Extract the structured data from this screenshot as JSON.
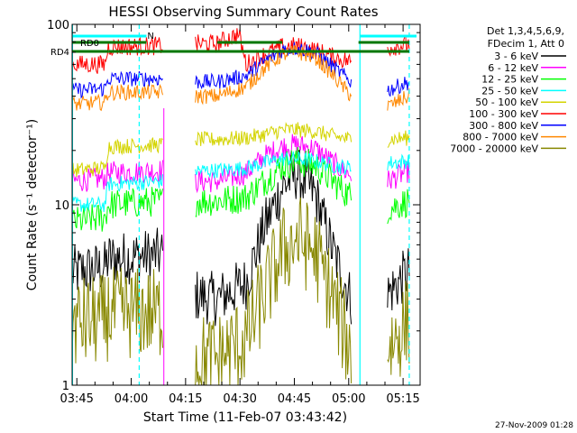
{
  "chart_data": {
    "type": "line",
    "title": "HESSI Observing Summary Count Rates",
    "xlabel": "Start Time (11-Feb-07 03:43:42)",
    "ylabel": "Count Rate (s⁻¹ detector⁻¹)",
    "x_tick_labels": [
      "03:45",
      "04:00",
      "04:15",
      "04:30",
      "04:45",
      "05:00",
      "05:15"
    ],
    "x_tick_minutes": [
      1.3,
      16.3,
      31.3,
      46.3,
      61.3,
      76.3,
      91.3
    ],
    "xlim_minutes": [
      0,
      96
    ],
    "y_scale": "log",
    "ylim": [
      1,
      100
    ],
    "y_tick_labels": [
      "1",
      "10",
      "100"
    ],
    "y_tick_values": [
      1,
      10,
      100
    ],
    "legend": {
      "placement": "top-right",
      "header_lines": [
        "Det 1,3,4,5,6,9,",
        "FDecim 1, Att 0"
      ]
    },
    "annotations": {
      "rd0": "RD0",
      "rd4": "RD4",
      "n_flag": "N",
      "rd0_color": "#007700",
      "rd4_color": "#007700",
      "n_color": "#00ffff",
      "vline_color": "#00ffff",
      "solid_vlines_minutes": [
        0.1,
        79.4
      ],
      "dashed_vlines_minutes": [
        18.5,
        93.0
      ],
      "magenta_vline_minute": 25.3
    },
    "timestamp": "27-Nov-2009 01:28",
    "gap_minutes": [
      [
        25,
        34
      ],
      [
        77,
        87
      ]
    ],
    "series": [
      {
        "name": "3 - 6 keV",
        "color": "#000000",
        "x": [
          0,
          9,
          10,
          25,
          32,
          40,
          48,
          53,
          58,
          62,
          67,
          72,
          77,
          80,
          85,
          87,
          93
        ],
        "y": [
          4.2,
          4.5,
          5.0,
          5.3,
          3.2,
          3.0,
          3.7,
          7.5,
          12.5,
          15.0,
          11.5,
          5.5,
          3.0,
          3.0,
          3.5,
          3.2,
          4.3
        ]
      },
      {
        "name": "6 - 12 keV",
        "color": "#ff00ff",
        "x": [
          0,
          9,
          10,
          25,
          32,
          40,
          48,
          53,
          58,
          62,
          67,
          72,
          77,
          80,
          85,
          87,
          93
        ],
        "y": [
          13.5,
          14.0,
          15.0,
          15.5,
          13.5,
          13.5,
          15.0,
          18.5,
          21.0,
          21.5,
          20.5,
          17.0,
          14.5,
          13.5,
          14.0,
          13.5,
          15.5
        ]
      },
      {
        "name": "12 - 25 keV",
        "color": "#00ff00",
        "x": [
          0,
          9,
          10,
          25,
          32,
          40,
          48,
          53,
          58,
          62,
          67,
          72,
          77,
          80,
          85,
          87,
          93
        ],
        "y": [
          8.0,
          8.5,
          10.0,
          10.5,
          10.5,
          10.5,
          11.0,
          13.5,
          16.5,
          17.5,
          16.5,
          13.5,
          11.0,
          9.0,
          9.5,
          9.5,
          10.5
        ]
      },
      {
        "name": "25 - 50 keV",
        "color": "#00ffff",
        "x": [
          0,
          9,
          10,
          25,
          32,
          40,
          48,
          53,
          58,
          62,
          67,
          72,
          77,
          80,
          85,
          87,
          93
        ],
        "y": [
          10.0,
          10.0,
          13.0,
          13.5,
          15.5,
          15.5,
          16.0,
          17.0,
          18.0,
          18.0,
          17.5,
          16.5,
          16.0,
          17.0,
          17.5,
          17.0,
          17.5
        ]
      },
      {
        "name": "50 - 100 keV",
        "color": "#d4d400",
        "x": [
          0,
          9,
          10,
          25,
          32,
          40,
          48,
          53,
          58,
          62,
          67,
          72,
          77,
          80,
          85,
          87,
          93
        ],
        "y": [
          15.5,
          16.0,
          21.0,
          21.5,
          23.0,
          23.0,
          23.5,
          24.5,
          26.0,
          26.0,
          25.5,
          24.0,
          23.0,
          23.0,
          23.5,
          23.0,
          23.5
        ]
      },
      {
        "name": "100 - 300 keV",
        "color": "#ff0000",
        "x": [
          0,
          9,
          10,
          25,
          32,
          40,
          42,
          44,
          46,
          48,
          53,
          58,
          62,
          67,
          72,
          77,
          80,
          85,
          87,
          93
        ],
        "y": [
          60,
          60,
          75,
          76,
          78,
          78,
          82,
          85,
          88,
          60,
          68,
          75,
          76,
          72,
          66,
          62,
          80,
          76,
          74,
          78
        ]
      },
      {
        "name": "300 - 800 keV",
        "color": "#0000ff",
        "x": [
          0,
          9,
          10,
          25,
          32,
          40,
          48,
          53,
          58,
          62,
          67,
          72,
          77,
          80,
          85,
          87,
          93
        ],
        "y": [
          43,
          44,
          50,
          50,
          48,
          48,
          52,
          62,
          72,
          74,
          70,
          58,
          48,
          44,
          46,
          43,
          48
        ]
      },
      {
        "name": "800 - 7000 keV",
        "color": "#ff8800",
        "x": [
          0,
          9,
          10,
          25,
          32,
          40,
          48,
          53,
          58,
          62,
          67,
          72,
          77,
          80,
          85,
          87,
          93
        ],
        "y": [
          36,
          37,
          42,
          42,
          40,
          40,
          45,
          57,
          68,
          70,
          66,
          52,
          40,
          36,
          37,
          35,
          40
        ]
      },
      {
        "name": "7000 - 20000 keV",
        "color": "#888800",
        "x": [
          0,
          9,
          10,
          25,
          32,
          40,
          48,
          53,
          58,
          62,
          67,
          72,
          77,
          80,
          85,
          87,
          93
        ],
        "y": [
          2.2,
          2.3,
          2.5,
          2.5,
          1.4,
          1.4,
          1.8,
          3.2,
          5.5,
          6.5,
          5.5,
          3.0,
          1.5,
          1.3,
          1.5,
          1.6,
          2.3
        ]
      }
    ]
  }
}
